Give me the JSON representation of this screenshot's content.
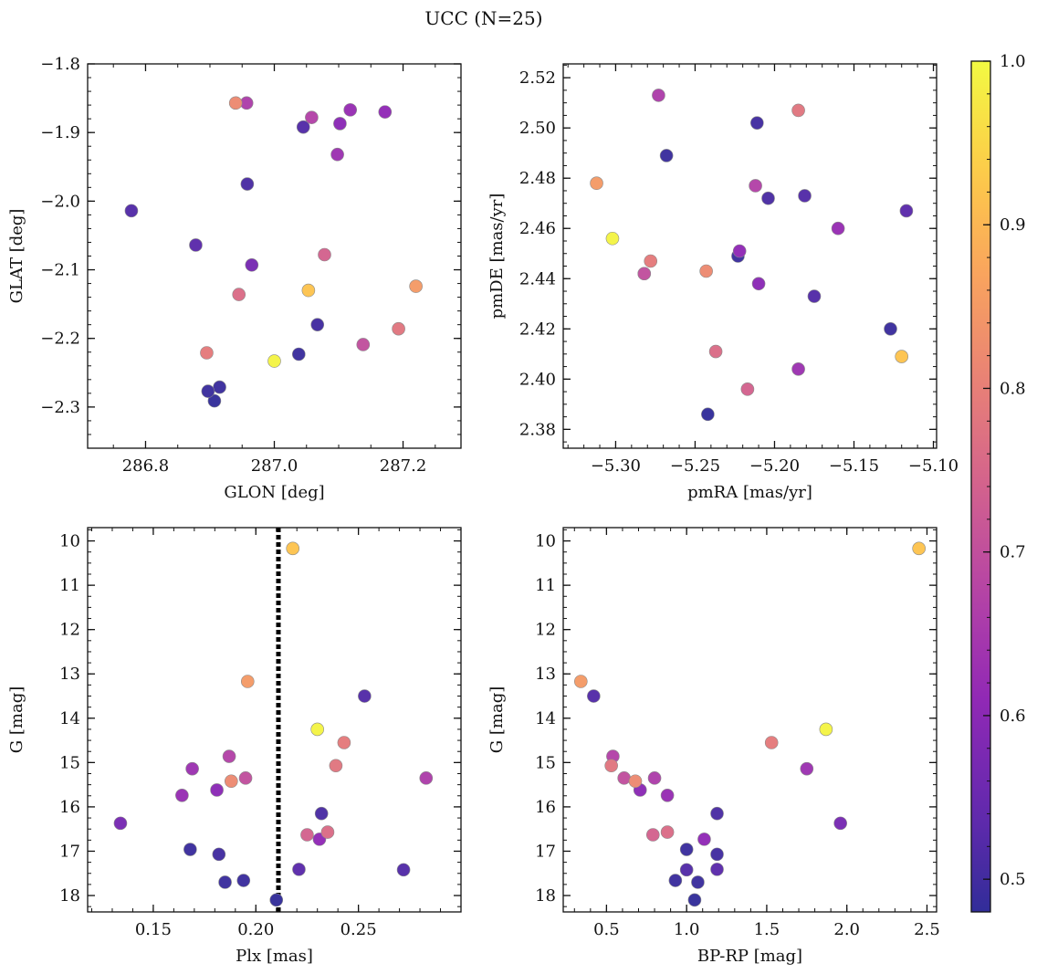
{
  "figure": {
    "title": "UCC (N=25)"
  },
  "colorbar": {
    "cmap": "plasma",
    "vmin": 0.48,
    "vmax": 1.0,
    "ticks": [
      0.5,
      0.6,
      0.7,
      0.8,
      0.9,
      1.0
    ],
    "tick_labels": [
      "0.5",
      "0.6",
      "0.7",
      "0.8",
      "0.9",
      "1.0"
    ]
  },
  "chart_data": [
    {
      "type": "scatter",
      "id": "glon-glat",
      "xlabel": "GLON [deg]",
      "ylabel": "GLAT [deg]",
      "xlim": [
        286.71,
        287.29
      ],
      "ylim": [
        -2.36,
        -1.8
      ],
      "y_inverted": false,
      "xticks": [
        286.8,
        287.0,
        287.2
      ],
      "xtick_labels": [
        "286.8",
        "287.0",
        "287.2"
      ],
      "yticks": [
        -1.8,
        -1.9,
        -2.0,
        -2.1,
        -2.2,
        -2.3
      ],
      "ytick_labels": [
        "−1.8",
        "−1.9",
        "−2.0",
        "−2.1",
        "−2.2",
        "−2.3"
      ],
      "x_minor_step": 0.05,
      "y_minor_step": 0.02,
      "vline": null
    },
    {
      "type": "scatter",
      "id": "pmra-pmde",
      "xlabel": "pmRA [mas/yr]",
      "ylabel": "pmDE [mas/yr]",
      "xlim": [
        -5.333,
        -5.098
      ],
      "ylim": [
        2.3725,
        2.5255
      ],
      "y_inverted": false,
      "xticks": [
        -5.3,
        -5.25,
        -5.2,
        -5.15,
        -5.1
      ],
      "xtick_labels": [
        "−5.30",
        "−5.25",
        "−5.20",
        "−5.15",
        "−5.10"
      ],
      "yticks": [
        2.38,
        2.4,
        2.42,
        2.44,
        2.46,
        2.48,
        2.5,
        2.52
      ],
      "ytick_labels": [
        "2.38",
        "2.40",
        "2.42",
        "2.44",
        "2.46",
        "2.48",
        "2.50",
        "2.52"
      ],
      "x_minor_step": 0.01,
      "y_minor_step": 0.005,
      "vline": null
    },
    {
      "type": "scatter",
      "id": "plx-g",
      "xlabel": "Plx [mas]",
      "ylabel": "G [mag]",
      "xlim": [
        0.118,
        0.3
      ],
      "ylim": [
        18.37,
        9.7
      ],
      "y_inverted": true,
      "xticks": [
        0.15,
        0.2,
        0.25
      ],
      "xtick_labels": [
        "0.15",
        "0.20",
        "0.25"
      ],
      "yticks": [
        10,
        11,
        12,
        13,
        14,
        15,
        16,
        17,
        18
      ],
      "ytick_labels": [
        "10",
        "11",
        "12",
        "13",
        "14",
        "15",
        "16",
        "17",
        "18"
      ],
      "x_minor_step": 0.01,
      "y_minor_step": 0.25,
      "vline": 0.211
    },
    {
      "type": "scatter",
      "id": "bprp-g",
      "xlabel": "BP-RP [mag]",
      "ylabel": "G [mag]",
      "xlim": [
        0.23,
        2.56
      ],
      "ylim": [
        18.37,
        9.7
      ],
      "y_inverted": true,
      "xticks": [
        0.5,
        1.0,
        1.5,
        2.0,
        2.5
      ],
      "xtick_labels": [
        "0.5",
        "1.0",
        "1.5",
        "2.0",
        "2.5"
      ],
      "yticks": [
        10,
        11,
        12,
        13,
        14,
        15,
        16,
        17,
        18
      ],
      "ytick_labels": [
        "10",
        "11",
        "12",
        "13",
        "14",
        "15",
        "16",
        "17",
        "18"
      ],
      "x_minor_step": 0.1,
      "y_minor_step": 0.25,
      "vline": null
    }
  ],
  "stars": [
    {
      "glon": 287.0,
      "glat": -2.233,
      "pmra": -5.302,
      "pmde": 2.456,
      "plx": 0.23,
      "g": 14.25,
      "bprp": 1.87,
      "p": 0.99
    },
    {
      "glon": 287.053,
      "glat": -2.13,
      "pmra": -5.12,
      "pmde": 2.409,
      "plx": 0.218,
      "g": 10.17,
      "bprp": 2.45,
      "p": 0.92
    },
    {
      "glon": 287.22,
      "glat": -2.124,
      "pmra": -5.312,
      "pmde": 2.478,
      "plx": 0.196,
      "g": 13.17,
      "bprp": 0.34,
      "p": 0.85
    },
    {
      "glon": 286.94,
      "glat": -1.857,
      "pmra": -5.243,
      "pmde": 2.443,
      "plx": 0.188,
      "g": 15.42,
      "bprp": 0.68,
      "p": 0.82
    },
    {
      "glon": 286.895,
      "glat": -2.221,
      "pmra": -5.278,
      "pmde": 2.447,
      "plx": 0.243,
      "g": 14.55,
      "bprp": 1.53,
      "p": 0.79
    },
    {
      "glon": 287.193,
      "glat": -2.186,
      "pmra": -5.185,
      "pmde": 2.507,
      "plx": 0.239,
      "g": 15.07,
      "bprp": 0.53,
      "p": 0.78
    },
    {
      "glon": 286.945,
      "glat": -2.136,
      "pmra": -5.237,
      "pmde": 2.411,
      "plx": 0.235,
      "g": 16.57,
      "bprp": 0.88,
      "p": 0.76
    },
    {
      "glon": 287.078,
      "glat": -2.078,
      "pmra": -5.217,
      "pmde": 2.396,
      "plx": 0.225,
      "g": 16.63,
      "bprp": 0.79,
      "p": 0.74
    },
    {
      "glon": 287.138,
      "glat": -2.209,
      "pmra": -5.282,
      "pmde": 2.442,
      "plx": 0.195,
      "g": 15.35,
      "bprp": 0.61,
      "p": 0.7
    },
    {
      "glon": 287.058,
      "glat": -1.878,
      "pmra": -5.212,
      "pmde": 2.477,
      "plx": 0.187,
      "g": 14.86,
      "bprp": 0.54,
      "p": 0.67
    },
    {
      "glon": 286.957,
      "glat": -1.857,
      "pmra": -5.273,
      "pmde": 2.513,
      "plx": 0.283,
      "g": 15.35,
      "bprp": 0.8,
      "p": 0.66
    },
    {
      "glon": 287.098,
      "glat": -1.932,
      "pmra": -5.185,
      "pmde": 2.404,
      "plx": 0.169,
      "g": 15.14,
      "bprp": 1.75,
      "p": 0.63
    },
    {
      "glon": 287.118,
      "glat": -1.867,
      "pmra": -5.16,
      "pmde": 2.46,
      "plx": 0.164,
      "g": 15.74,
      "bprp": 0.88,
      "p": 0.62
    },
    {
      "glon": 287.172,
      "glat": -1.87,
      "pmra": -5.222,
      "pmde": 2.451,
      "plx": 0.231,
      "g": 16.73,
      "bprp": 1.11,
      "p": 0.61
    },
    {
      "glon": 287.102,
      "glat": -1.887,
      "pmra": -5.21,
      "pmde": 2.438,
      "plx": 0.181,
      "g": 15.62,
      "bprp": 0.71,
      "p": 0.6
    },
    {
      "glon": 286.965,
      "glat": -2.093,
      "pmra": -5.282,
      "pmde": 2.442,
      "plx": 0.134,
      "g": 16.37,
      "bprp": 1.96,
      "p": 0.57
    },
    {
      "glon": 286.778,
      "glat": -2.014,
      "pmra": -5.175,
      "pmde": 2.433,
      "plx": 0.253,
      "g": 13.5,
      "bprp": 0.42,
      "p": 0.52
    },
    {
      "glon": 286.878,
      "glat": -2.064,
      "pmra": -5.117,
      "pmde": 2.467,
      "plx": 0.221,
      "g": 17.41,
      "bprp": 1.19,
      "p": 0.53
    },
    {
      "glon": 287.045,
      "glat": -1.892,
      "pmra": -5.181,
      "pmde": 2.473,
      "plx": 0.272,
      "g": 17.42,
      "bprp": 1.0,
      "p": 0.52
    },
    {
      "glon": 286.958,
      "glat": -1.975,
      "pmra": -5.204,
      "pmde": 2.472,
      "plx": 0.232,
      "g": 16.15,
      "bprp": 1.19,
      "p": 0.51
    },
    {
      "glon": 287.067,
      "glat": -2.18,
      "pmra": -5.211,
      "pmde": 2.502,
      "plx": 0.182,
      "g": 17.07,
      "bprp": 1.19,
      "p": 0.5
    },
    {
      "glon": 287.038,
      "glat": -2.223,
      "pmra": -5.223,
      "pmde": 2.449,
      "plx": 0.168,
      "g": 16.96,
      "bprp": 1.0,
      "p": 0.49
    },
    {
      "glon": 286.915,
      "glat": -2.271,
      "pmra": -5.127,
      "pmde": 2.42,
      "plx": 0.194,
      "g": 17.66,
      "bprp": 0.93,
      "p": 0.49
    },
    {
      "glon": 286.897,
      "glat": -2.277,
      "pmra": -5.268,
      "pmde": 2.489,
      "plx": 0.185,
      "g": 17.7,
      "bprp": 1.07,
      "p": 0.49
    },
    {
      "glon": 286.907,
      "glat": -2.291,
      "pmra": -5.242,
      "pmde": 2.386,
      "plx": 0.21,
      "g": 18.1,
      "bprp": 1.05,
      "p": 0.48
    }
  ]
}
